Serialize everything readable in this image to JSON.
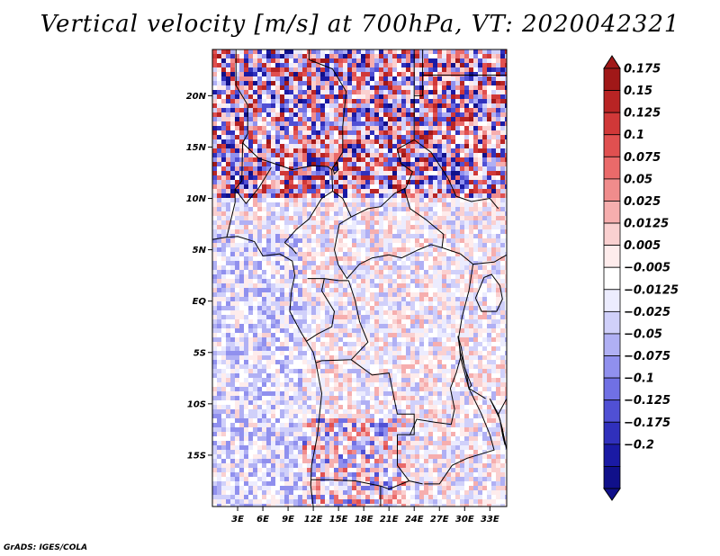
{
  "title": "Vertical velocity [m/s] at 700hPa, VT: 2020042321",
  "credit": "GrADS: IGES/COLA",
  "map": {
    "lon_range": [
      0,
      35
    ],
    "lat_range": [
      -20,
      24.5
    ],
    "lat_ticks": [
      {
        "value": 20,
        "label": "20N"
      },
      {
        "value": 15,
        "label": "15N"
      },
      {
        "value": 10,
        "label": "10N"
      },
      {
        "value": 5,
        "label": "5N"
      },
      {
        "value": 0,
        "label": "EQ"
      },
      {
        "value": -5,
        "label": "5S"
      },
      {
        "value": -10,
        "label": "10S"
      },
      {
        "value": -15,
        "label": "15S"
      }
    ],
    "lon_ticks": [
      {
        "value": 3,
        "label": "3E"
      },
      {
        "value": 6,
        "label": "6E"
      },
      {
        "value": 9,
        "label": "9E"
      },
      {
        "value": 12,
        "label": "12E"
      },
      {
        "value": 15,
        "label": "15E"
      },
      {
        "value": 18,
        "label": "18E"
      },
      {
        "value": 21,
        "label": "21E"
      },
      {
        "value": 24,
        "label": "24E"
      },
      {
        "value": 27,
        "label": "27E"
      },
      {
        "value": 30,
        "label": "30E"
      },
      {
        "value": 33,
        "label": "33E"
      }
    ]
  },
  "colorbar": {
    "levels": [
      "0.175",
      "0.15",
      "0.125",
      "0.1",
      "0.075",
      "0.05",
      "0.025",
      "0.0125",
      "0.005",
      "−0.005",
      "−0.0125",
      "−0.025",
      "−0.05",
      "−0.075",
      "−0.1",
      "−0.125",
      "−0.175",
      "−0.2"
    ],
    "colors": [
      "#a01818",
      "#b82424",
      "#d03838",
      "#e05050",
      "#ea6a6a",
      "#f08c8c",
      "#f6aeae",
      "#fad0d0",
      "#feecec",
      "#ffffff",
      "#ececfe",
      "#d0d0fa",
      "#b0b0f4",
      "#9090ee",
      "#7070e4",
      "#5050d4",
      "#3030bc",
      "#1a1aa4",
      "#10108a"
    ]
  }
}
